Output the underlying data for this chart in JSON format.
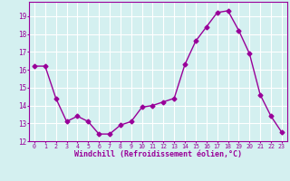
{
  "x": [
    0,
    1,
    2,
    3,
    4,
    5,
    6,
    7,
    8,
    9,
    10,
    11,
    12,
    13,
    14,
    15,
    16,
    17,
    18,
    19,
    20,
    21,
    22,
    23
  ],
  "y": [
    16.2,
    16.2,
    14.4,
    13.1,
    13.4,
    13.1,
    12.4,
    12.4,
    12.9,
    13.1,
    13.9,
    14.0,
    14.2,
    14.4,
    16.3,
    17.6,
    18.4,
    19.2,
    19.3,
    18.2,
    16.9,
    14.6,
    13.4,
    12.5
  ],
  "line_color": "#990099",
  "marker": "D",
  "marker_size": 2.5,
  "xlim": [
    -0.5,
    23.5
  ],
  "ylim": [
    12,
    19.8
  ],
  "yticks": [
    12,
    13,
    14,
    15,
    16,
    17,
    18,
    19
  ],
  "xticks": [
    0,
    1,
    2,
    3,
    4,
    5,
    6,
    7,
    8,
    9,
    10,
    11,
    12,
    13,
    14,
    15,
    16,
    17,
    18,
    19,
    20,
    21,
    22,
    23
  ],
  "xlabel": "Windchill (Refroidissement éolien,°C)",
  "background_color": "#d4f0f0",
  "grid_color": "#ffffff",
  "tick_color": "#990099",
  "label_color": "#990099"
}
